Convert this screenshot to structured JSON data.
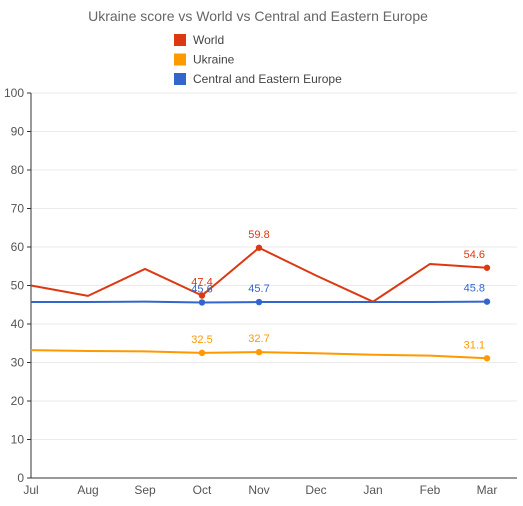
{
  "chart_data": {
    "type": "line",
    "title": "Ukraine score vs World vs Central and Eastern Europe",
    "xlabel": "",
    "ylabel": "",
    "categories": [
      "Jul",
      "Aug",
      "Sep",
      "Oct",
      "Nov",
      "Dec",
      "Jan",
      "Feb",
      "Mar"
    ],
    "ylim": [
      0,
      100
    ],
    "yticks": [
      0,
      10,
      20,
      30,
      40,
      50,
      60,
      70,
      80,
      90,
      100
    ],
    "legend_position": "top",
    "series": [
      {
        "name": "World",
        "color": "#dc3912",
        "values": [
          50.0,
          47.3,
          54.3,
          47.4,
          59.8,
          52.6,
          45.8,
          55.6,
          54.6
        ],
        "markers": [
          3,
          4,
          8
        ],
        "labels": {
          "3": "47.4",
          "4": "59.8",
          "8": "54.6"
        }
      },
      {
        "name": "Ukraine",
        "color": "#ff9900",
        "values": [
          33.2,
          33.0,
          32.9,
          32.5,
          32.7,
          32.4,
          32.0,
          31.8,
          31.1
        ],
        "markers": [
          3,
          4,
          8
        ],
        "labels": {
          "3": "32.5",
          "4": "32.7",
          "8": "31.1"
        }
      },
      {
        "name": "Central and Eastern Europe",
        "color": "#3366cc",
        "values": [
          45.7,
          45.7,
          45.8,
          45.6,
          45.7,
          45.7,
          45.7,
          45.7,
          45.8
        ],
        "markers": [
          3,
          4,
          8
        ],
        "labels": {
          "3": "45.6",
          "4": "45.7",
          "8": "45.8"
        }
      }
    ]
  }
}
